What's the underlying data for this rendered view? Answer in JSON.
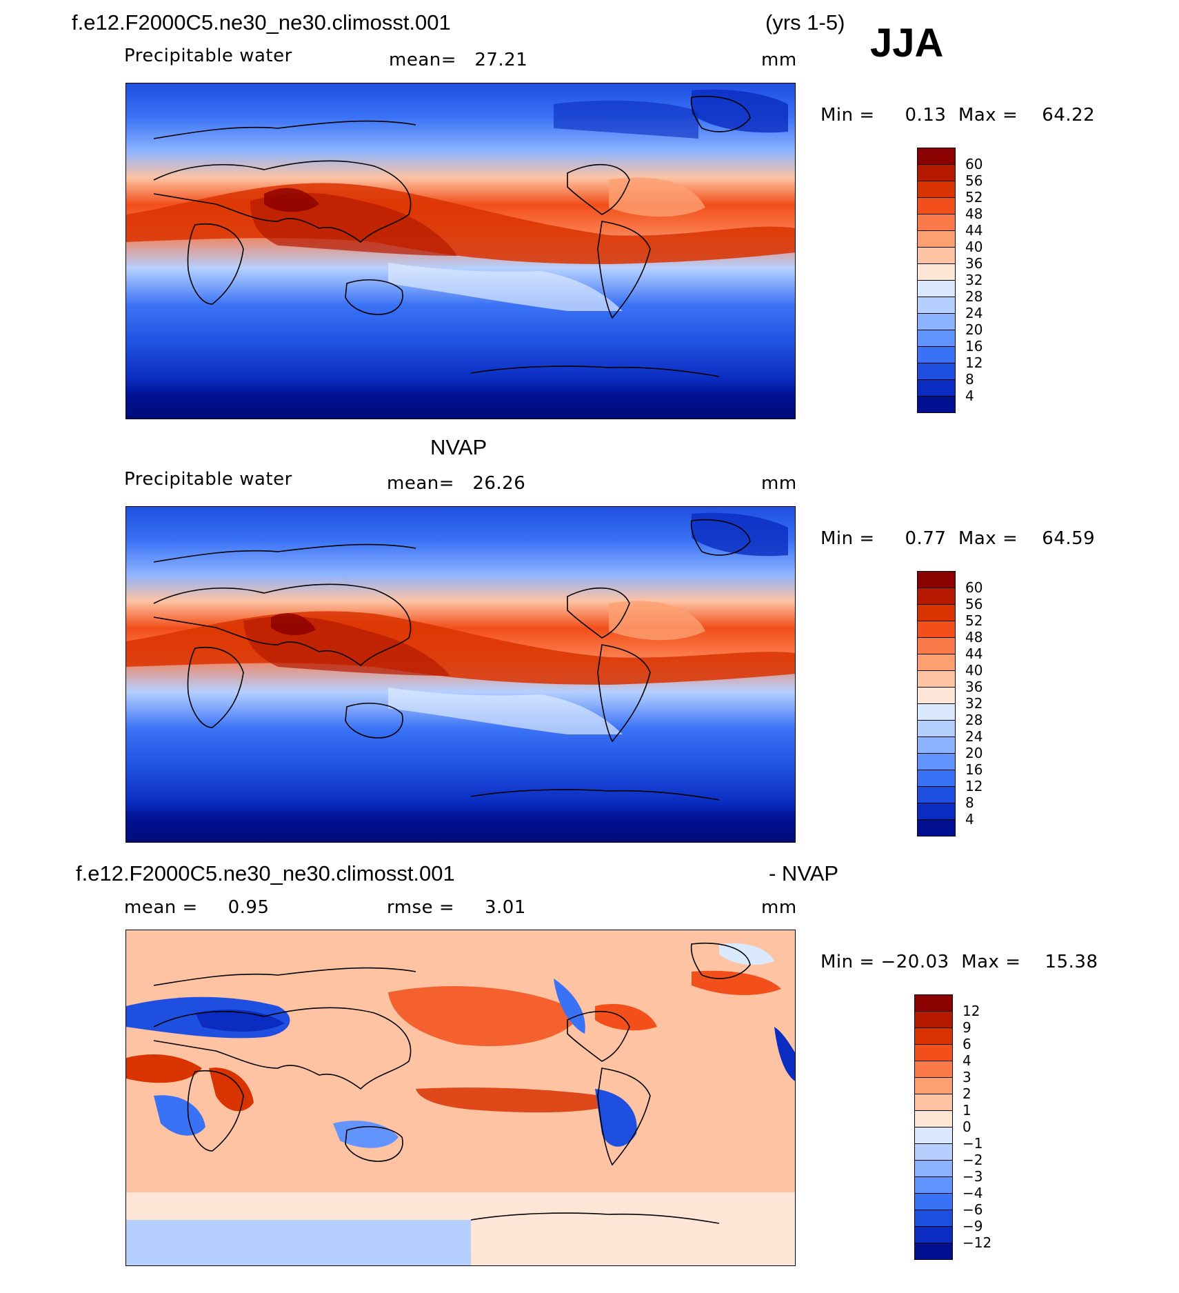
{
  "season": "JJA",
  "panels": [
    {
      "id": "model",
      "header_left": "f.e12.F2000C5.ne30_ne30.climosst.001",
      "header_right": "(yrs 1-5)",
      "variable": "Precipitable water",
      "stat_text": "mean=   27.21",
      "units": "mm",
      "minmax_text": "Min =     0.13  Max =    64.22",
      "colorbar": {
        "levels": [
          "60",
          "56",
          "52",
          "48",
          "44",
          "40",
          "36",
          "32",
          "28",
          "24",
          "20",
          "16",
          "12",
          "8",
          "4"
        ],
        "colors": [
          "#8b0000",
          "#b51a00",
          "#d93300",
          "#f24f1a",
          "#fa7a4a",
          "#fca072",
          "#fdc3a3",
          "#fde6d6",
          "#dbe9ff",
          "#b5d0ff",
          "#8cb3ff",
          "#6294ff",
          "#3a72f5",
          "#1f4fe0",
          "#0a2cc0",
          "#001090"
        ]
      }
    },
    {
      "id": "obs",
      "header_center": "NVAP",
      "variable": "Precipitable water",
      "stat_text": "mean=   26.26",
      "units": "mm",
      "minmax_text": "Min =     0.77  Max =    64.59",
      "colorbar": {
        "levels": [
          "60",
          "56",
          "52",
          "48",
          "44",
          "40",
          "36",
          "32",
          "28",
          "24",
          "20",
          "16",
          "12",
          "8",
          "4"
        ],
        "colors": [
          "#8b0000",
          "#b51a00",
          "#d93300",
          "#f24f1a",
          "#fa7a4a",
          "#fca072",
          "#fdc3a3",
          "#fde6d6",
          "#dbe9ff",
          "#b5d0ff",
          "#8cb3ff",
          "#6294ff",
          "#3a72f5",
          "#1f4fe0",
          "#0a2cc0",
          "#001090"
        ]
      }
    },
    {
      "id": "diff",
      "header_left": "f.e12.F2000C5.ne30_ne30.climosst.001",
      "header_right": "- NVAP",
      "stat_text": "mean =     0.95",
      "rmse_text": "rmse =     3.01",
      "units": "mm",
      "minmax_text": "Min = −20.03  Max =    15.38",
      "colorbar": {
        "levels": [
          "12",
          "9",
          "6",
          "4",
          "3",
          "2",
          "1",
          "0",
          "−1",
          "−2",
          "−3",
          "−4",
          "−6",
          "−9",
          "−12"
        ],
        "colors": [
          "#8b0000",
          "#b51a00",
          "#d93300",
          "#f24f1a",
          "#fa7a4a",
          "#fca072",
          "#fdc3a3",
          "#fde6d6",
          "#dbe9ff",
          "#b5d0ff",
          "#8cb3ff",
          "#6294ff",
          "#3a72f5",
          "#1f4fe0",
          "#0a2cc0",
          "#001090"
        ]
      }
    }
  ]
}
